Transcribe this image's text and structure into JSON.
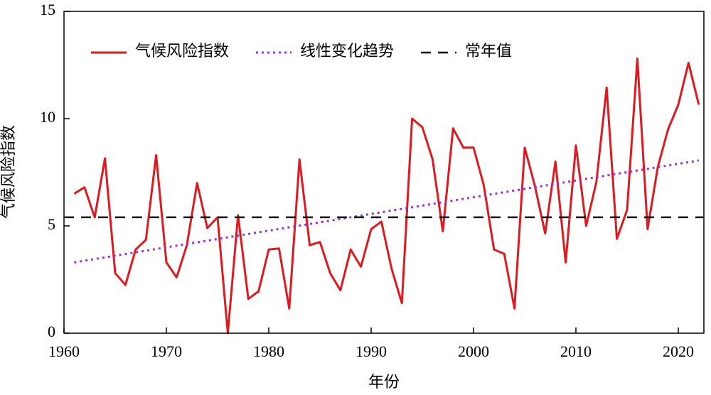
{
  "chart_data": {
    "type": "line",
    "xlabel": "年份",
    "ylabel": "气候风险指数",
    "x": [
      1961,
      1962,
      1963,
      1964,
      1965,
      1966,
      1967,
      1968,
      1969,
      1970,
      1971,
      1972,
      1973,
      1974,
      1975,
      1976,
      1977,
      1978,
      1979,
      1980,
      1981,
      1982,
      1983,
      1984,
      1985,
      1986,
      1987,
      1988,
      1989,
      1990,
      1991,
      1992,
      1993,
      1994,
      1995,
      1996,
      1997,
      1998,
      1999,
      2000,
      2001,
      2002,
      2003,
      2004,
      2005,
      2006,
      2007,
      2008,
      2009,
      2010,
      2011,
      2012,
      2013,
      2014,
      2015,
      2016,
      2017,
      2018,
      2019,
      2020,
      2021,
      2022
    ],
    "series": [
      {
        "name": "气候风险指数",
        "color": "#e0191e",
        "style": "solid",
        "values": [
          6.5,
          6.8,
          5.4,
          8.15,
          2.8,
          2.25,
          3.9,
          4.35,
          8.3,
          3.3,
          2.6,
          4.1,
          7.0,
          4.9,
          5.4,
          0.0,
          5.5,
          1.6,
          1.95,
          3.9,
          3.95,
          1.15,
          8.1,
          4.1,
          4.25,
          2.8,
          2.0,
          3.9,
          3.1,
          4.85,
          5.2,
          3.0,
          1.4,
          10.0,
          9.6,
          8.1,
          4.75,
          9.55,
          8.65,
          8.65,
          6.9,
          3.9,
          3.7,
          1.15,
          8.65,
          6.85,
          4.65,
          8.0,
          3.3,
          8.75,
          5.0,
          7.05,
          11.45,
          4.4,
          5.75,
          12.8,
          4.85,
          7.75,
          9.5,
          10.65,
          12.6,
          10.65
        ]
      },
      {
        "name": "线性变化趋势",
        "color": "#9b30d9",
        "style": "dotted",
        "x": [
          1961,
          2022
        ],
        "values": [
          3.3,
          8.05
        ]
      },
      {
        "name": "常年值",
        "color": "#000000",
        "style": "dashed",
        "x": [
          1960,
          2022.5
        ],
        "values": [
          5.4,
          5.4
        ]
      }
    ],
    "xlim": [
      1960,
      2022.5
    ],
    "xticks": [
      1960,
      1970,
      1980,
      1990,
      2000,
      2010,
      2020
    ],
    "ylim": [
      0,
      15
    ],
    "yticks": [
      0,
      5,
      10,
      15
    ],
    "legend": "top-left"
  }
}
